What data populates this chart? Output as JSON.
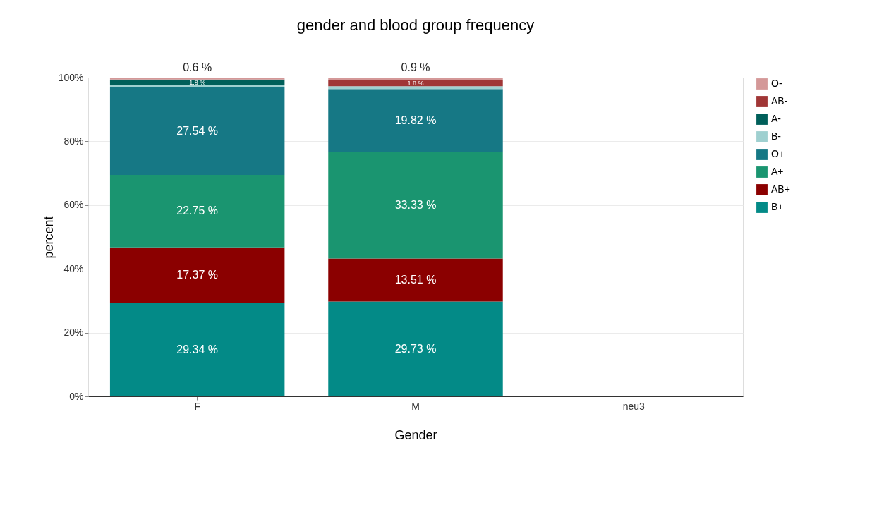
{
  "chart_data": {
    "type": "bar",
    "title": "gender and blood group frequency",
    "xlabel": "Gender",
    "ylabel": "percent",
    "categories": [
      "F",
      "M",
      "neu3"
    ],
    "stacked": true,
    "legend": "right",
    "grid": "y",
    "ylim": [
      0,
      100
    ],
    "yticks": [
      {
        "value": 0,
        "label": "0%"
      },
      {
        "value": 20,
        "label": "20%"
      },
      {
        "value": 40,
        "label": "40%"
      },
      {
        "value": 60,
        "label": "60%"
      },
      {
        "value": 80,
        "label": "80%"
      },
      {
        "value": 100,
        "label": "100%"
      }
    ],
    "series": [
      {
        "name": "B+",
        "color": "#038a87",
        "values": [
          29.34,
          29.73,
          null
        ],
        "value_labels": [
          "29.34 %",
          "29.73 %",
          null
        ]
      },
      {
        "name": "AB+",
        "color": "#8b0000",
        "values": [
          17.37,
          13.51,
          null
        ],
        "value_labels": [
          "17.37 %",
          "13.51 %",
          null
        ]
      },
      {
        "name": "A+",
        "color": "#1a9570",
        "values": [
          22.75,
          33.33,
          null
        ],
        "value_labels": [
          "22.75 %",
          "33.33 %",
          null
        ]
      },
      {
        "name": "O+",
        "color": "#167885",
        "values": [
          27.54,
          19.82,
          null
        ],
        "value_labels": [
          "27.54 %",
          "19.82 %",
          null
        ]
      },
      {
        "name": "B-",
        "color": "#9fd0d0",
        "values": [
          0.6,
          0.9,
          null
        ],
        "value_labels": [
          null,
          null,
          null
        ]
      },
      {
        "name": "A-",
        "color": "#005f5a",
        "values": [
          1.8,
          null,
          null
        ],
        "value_labels": [
          "1.8 %",
          null,
          null
        ]
      },
      {
        "name": "AB-",
        "color": "#a03636",
        "values": [
          null,
          1.8,
          null
        ],
        "value_labels": [
          null,
          "1.8 %",
          null
        ]
      },
      {
        "name": "O-",
        "color": "#d49898",
        "values": [
          0.6,
          0.9,
          null
        ],
        "value_labels": [
          "0.6 %",
          "0.9 %",
          null
        ]
      }
    ]
  }
}
